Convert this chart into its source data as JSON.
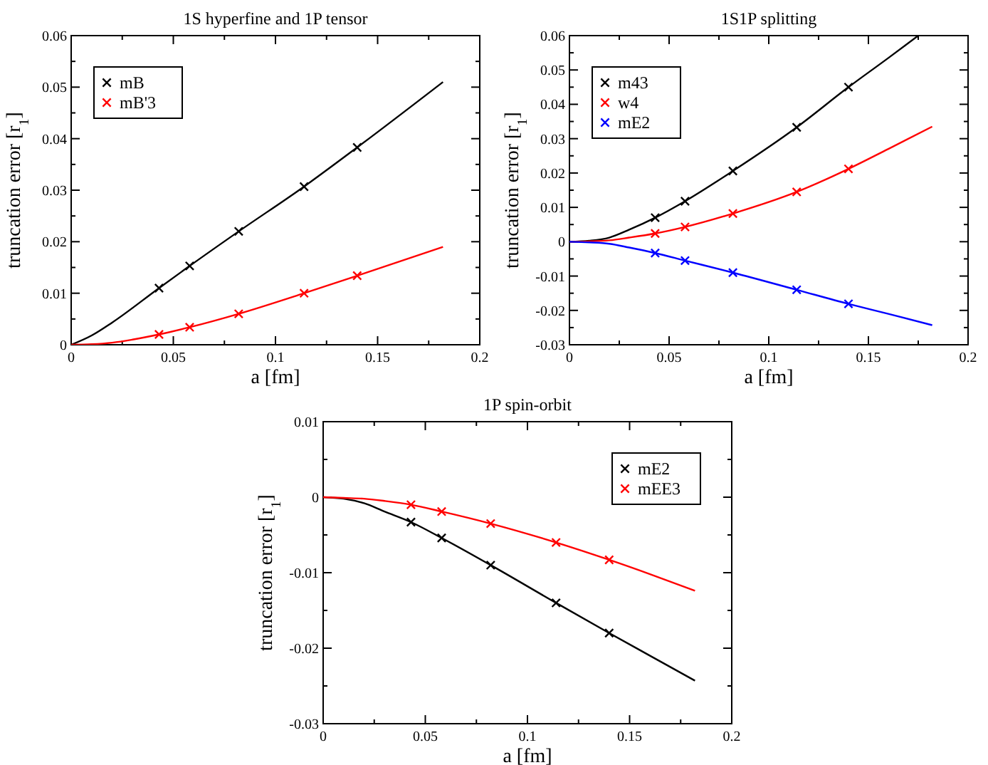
{
  "chart_data": [
    {
      "type": "scatter",
      "title": "1S hyperfine and 1P tensor",
      "xlabel": "a [fm]",
      "ylabel": "truncation error [r$_{1}$]",
      "legend": "top left",
      "xlim": [
        0,
        0.2
      ],
      "ylim": [
        0,
        0.06
      ],
      "xticks": [
        0,
        {
          "value": 0.025,
          "label": null
        },
        0.05,
        {
          "value": 0.075,
          "label": null
        },
        0.1,
        {
          "value": 0.125,
          "label": null
        },
        0.15,
        {
          "value": 0.175,
          "label": null
        },
        0.2
      ],
      "yticks": [
        0,
        {
          "value": 0.005,
          "label": null
        },
        0.01,
        {
          "value": 0.015,
          "label": null
        },
        0.02,
        {
          "value": 0.025,
          "label": null
        },
        0.03,
        {
          "value": 0.035,
          "label": null
        },
        0.04,
        {
          "value": 0.045,
          "label": null
        },
        0.05,
        {
          "value": 0.055,
          "label": null
        },
        0.06
      ],
      "series": [
        {
          "name": "mB",
          "color": "#000000",
          "marker": "cross",
          "x": [
            0.043,
            0.058,
            0.082,
            0.114,
            0.14
          ],
          "values": [
            0.011,
            0.0153,
            0.022,
            0.0307,
            0.0383
          ]
        },
        {
          "name": "mB'3",
          "color": "#ff0000",
          "marker": "cross",
          "x": [
            0.043,
            0.058,
            0.082,
            0.114,
            0.14
          ],
          "values": [
            0.002,
            0.0034,
            0.006,
            0.01,
            0.0134
          ]
        },
        {
          "type": "line",
          "color": "#000000",
          "x": [
            0,
            0.01,
            0.02,
            0.043,
            0.058,
            0.082,
            0.114,
            0.14,
            0.182
          ],
          "values": [
            0,
            0.0018,
            0.0043,
            0.011,
            0.0153,
            0.022,
            0.0307,
            0.0383,
            0.051
          ]
        },
        {
          "type": "line",
          "color": "#ff0000",
          "x": [
            0,
            0.01,
            0.02,
            0.03,
            0.043,
            0.058,
            0.082,
            0.114,
            0.14,
            0.182
          ],
          "values": [
            0,
            0.0001,
            0.0004,
            0.001,
            0.002,
            0.0034,
            0.006,
            0.01,
            0.0134,
            0.019
          ]
        }
      ]
    },
    {
      "type": "scatter",
      "title": "1S1P splitting",
      "xlabel": "a [fm]",
      "ylabel": "truncation error [r$_{1}$]",
      "legend": "top left",
      "xlim": [
        0,
        0.2
      ],
      "ylim": [
        -0.03,
        0.06
      ],
      "xticks": [
        0,
        {
          "value": 0.025,
          "label": null
        },
        0.05,
        {
          "value": 0.075,
          "label": null
        },
        0.1,
        {
          "value": 0.125,
          "label": null
        },
        0.15,
        {
          "value": 0.175,
          "label": null
        },
        0.2
      ],
      "yticks": [
        -0.03,
        {
          "value": -0.025,
          "label": null
        },
        -0.02,
        {
          "value": -0.015,
          "label": null
        },
        -0.01,
        {
          "value": -0.005,
          "label": null
        },
        0,
        {
          "value": 0.005,
          "label": null
        },
        0.01,
        {
          "value": 0.015,
          "label": null
        },
        0.02,
        {
          "value": 0.025,
          "label": null
        },
        0.03,
        {
          "value": 0.035,
          "label": null
        },
        0.04,
        {
          "value": 0.045,
          "label": null
        },
        0.05,
        {
          "value": 0.055,
          "label": null
        },
        0.06
      ],
      "series": [
        {
          "name": "m43",
          "color": "#000000",
          "marker": "cross",
          "x": [
            0.043,
            0.058,
            0.082,
            0.114,
            0.14
          ],
          "values": [
            0.007,
            0.0118,
            0.0206,
            0.0333,
            0.045
          ]
        },
        {
          "name": "w4",
          "color": "#ff0000",
          "marker": "cross",
          "x": [
            0.043,
            0.058,
            0.082,
            0.114,
            0.14
          ],
          "values": [
            0.0024,
            0.0043,
            0.0082,
            0.0145,
            0.0212
          ]
        },
        {
          "name": "mE2",
          "color": "#0000ff",
          "marker": "cross",
          "x": [
            0.043,
            0.058,
            0.082,
            0.114,
            0.14
          ],
          "values": [
            -0.0033,
            -0.0055,
            -0.009,
            -0.014,
            -0.0181
          ]
        },
        {
          "type": "line",
          "color": "#000000",
          "x": [
            0,
            0.01,
            0.02,
            0.03,
            0.043,
            0.058,
            0.082,
            0.114,
            0.14,
            0.16,
            0.175
          ],
          "values": [
            0,
            0.0003,
            0.0012,
            0.0035,
            0.007,
            0.0118,
            0.0206,
            0.0333,
            0.045,
            0.0535,
            0.06
          ]
        },
        {
          "type": "line",
          "color": "#ff0000",
          "x": [
            0,
            0.01,
            0.02,
            0.03,
            0.043,
            0.058,
            0.082,
            0.114,
            0.14,
            0.16,
            0.182
          ],
          "values": [
            0,
            0.0001,
            0.0004,
            0.0012,
            0.0024,
            0.0043,
            0.0082,
            0.0145,
            0.0212,
            0.027,
            0.0335
          ]
        },
        {
          "type": "line",
          "color": "#0000ff",
          "x": [
            0,
            0.01,
            0.02,
            0.03,
            0.043,
            0.058,
            0.082,
            0.114,
            0.14,
            0.16,
            0.182
          ],
          "values": [
            0,
            -0.0002,
            -0.0006,
            -0.0017,
            -0.0033,
            -0.0055,
            -0.009,
            -0.014,
            -0.0181,
            -0.021,
            -0.0243
          ]
        }
      ]
    },
    {
      "type": "scatter",
      "title": "1P spin-orbit",
      "xlabel": "a [fm]",
      "ylabel": "truncation error [r$_{1}$]",
      "legend": "top right",
      "xlim": [
        0,
        0.2
      ],
      "ylim": [
        -0.03,
        0.01
      ],
      "xticks": [
        0,
        {
          "value": 0.025,
          "label": null
        },
        0.05,
        {
          "value": 0.075,
          "label": null
        },
        0.1,
        {
          "value": 0.125,
          "label": null
        },
        0.15,
        {
          "value": 0.175,
          "label": null
        },
        0.2
      ],
      "yticks": [
        -0.03,
        {
          "value": -0.025,
          "label": null
        },
        -0.02,
        {
          "value": -0.015,
          "label": null
        },
        -0.01,
        {
          "value": -0.005,
          "label": null
        },
        0,
        {
          "value": 0.005,
          "label": null
        },
        0.01
      ],
      "series": [
        {
          "name": "mE2",
          "color": "#000000",
          "marker": "cross",
          "x": [
            0.043,
            0.058,
            0.082,
            0.114,
            0.14
          ],
          "values": [
            -0.0033,
            -0.0054,
            -0.009,
            -0.014,
            -0.018
          ]
        },
        {
          "name": "mEE3",
          "color": "#ff0000",
          "marker": "cross",
          "x": [
            0.043,
            0.058,
            0.082,
            0.114,
            0.14
          ],
          "values": [
            -0.001,
            -0.0019,
            -0.0035,
            -0.006,
            -0.0083
          ]
        },
        {
          "type": "line",
          "color": "#000000",
          "x": [
            0,
            0.01,
            0.02,
            0.03,
            0.043,
            0.058,
            0.082,
            0.114,
            0.14,
            0.16,
            0.182
          ],
          "values": [
            0,
            -0.0002,
            -0.0008,
            -0.0019,
            -0.0033,
            -0.0054,
            -0.009,
            -0.014,
            -0.018,
            -0.021,
            -0.0243
          ]
        },
        {
          "type": "line",
          "color": "#ff0000",
          "x": [
            0,
            0.01,
            0.02,
            0.03,
            0.043,
            0.058,
            0.082,
            0.114,
            0.14,
            0.16,
            0.182
          ],
          "values": [
            0,
            -0.0001,
            -0.0002,
            -0.0005,
            -0.001,
            -0.0019,
            -0.0035,
            -0.006,
            -0.0083,
            -0.0102,
            -0.0124
          ]
        }
      ]
    }
  ]
}
